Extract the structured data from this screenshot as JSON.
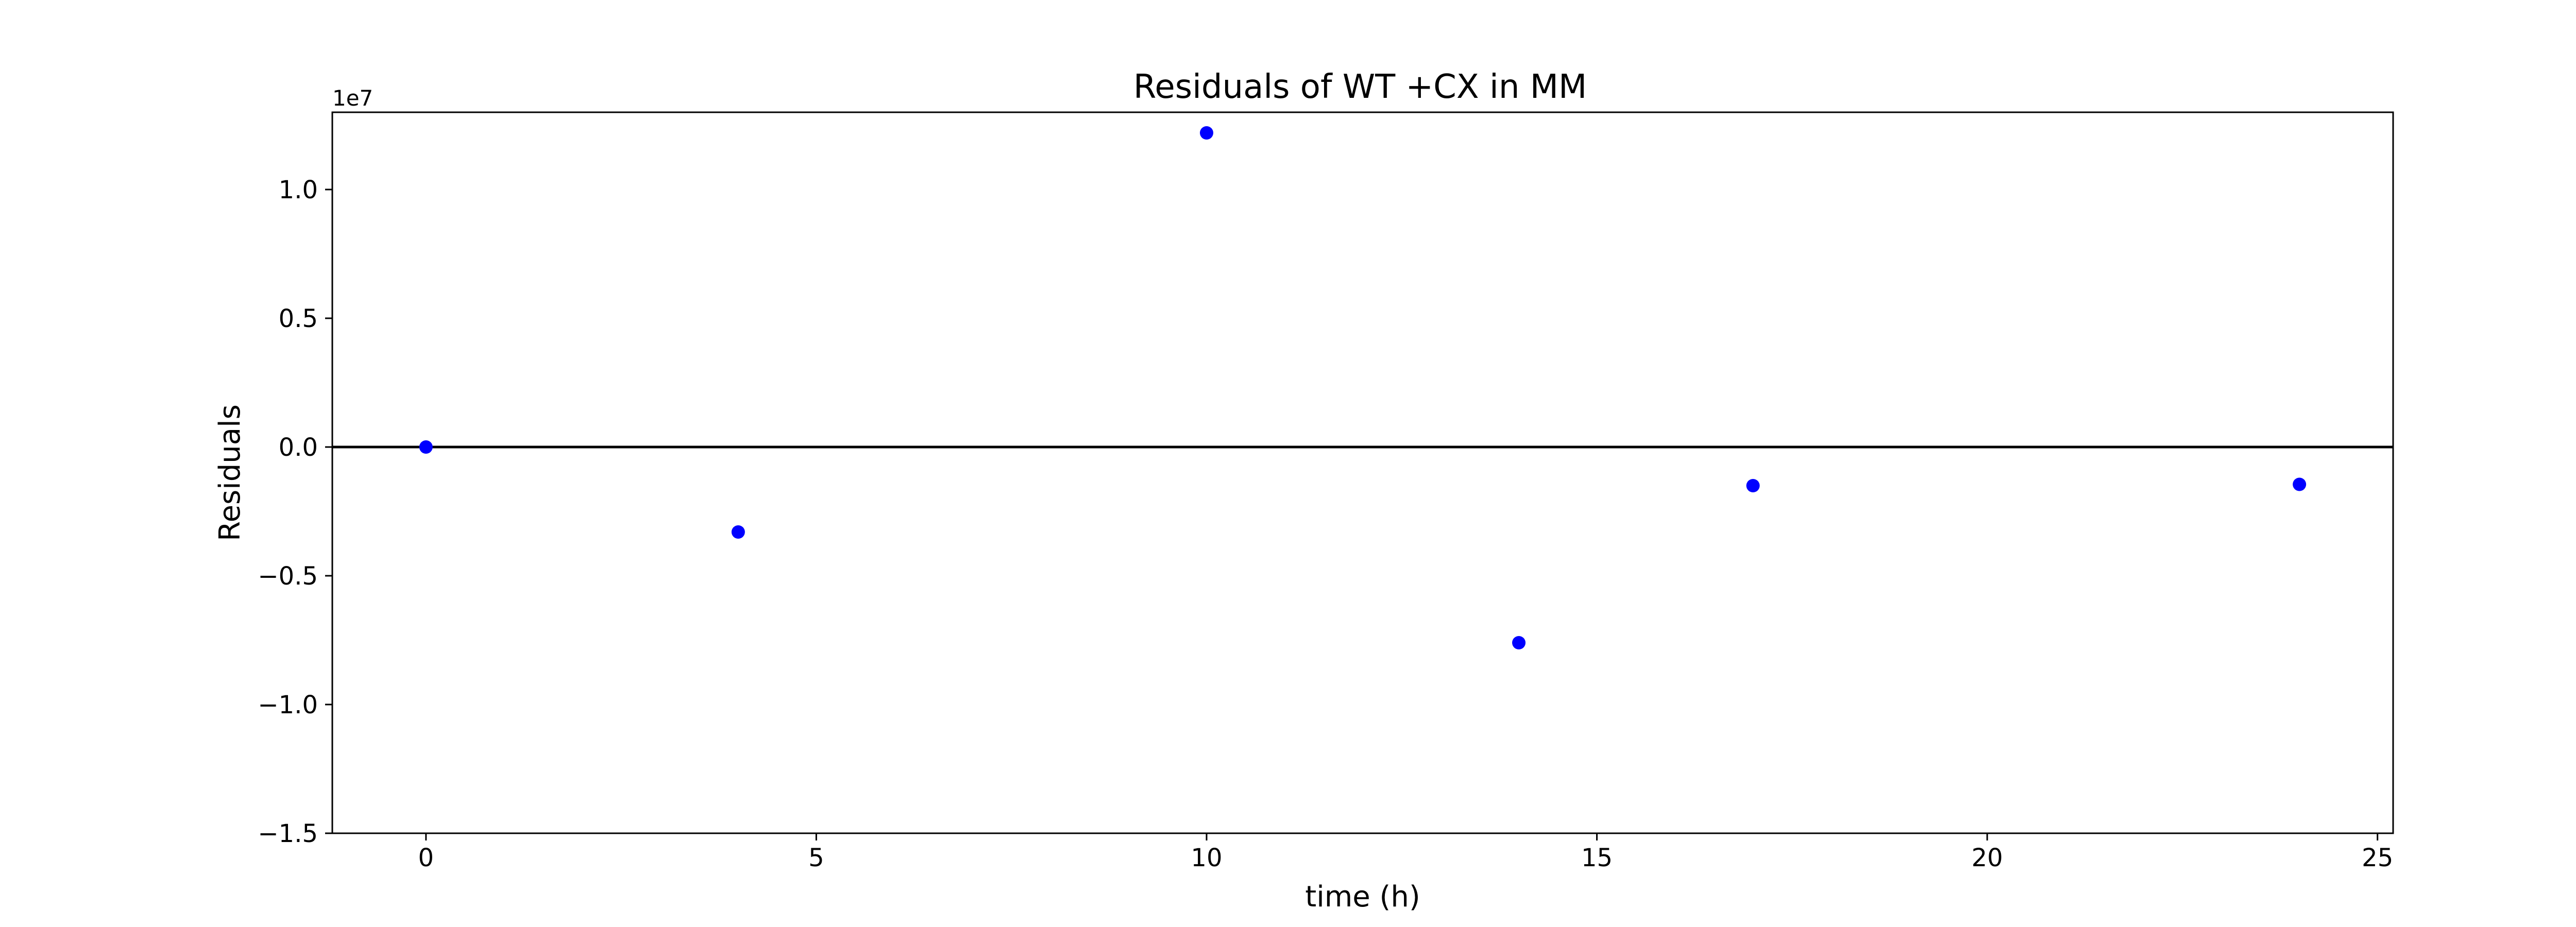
{
  "chart_data": {
    "type": "scatter",
    "title": "Residuals of WT +CX in MM",
    "xlabel": "time (h)",
    "ylabel": "Residuals",
    "y_offset_label": "1e7",
    "y_multiplier": 10000000,
    "xlim": [
      -1.2,
      25.2
    ],
    "ylim": [
      -1.5,
      1.3
    ],
    "x_ticks": [
      0,
      5,
      10,
      15,
      20,
      25
    ],
    "x_tick_labels": [
      "0",
      "5",
      "10",
      "15",
      "20",
      "25"
    ],
    "y_ticks": [
      -1.5,
      -1.0,
      -0.5,
      0.0,
      0.5,
      1.0
    ],
    "y_tick_labels": [
      "−1.5",
      "−1.0",
      "−0.5",
      "0.0",
      "0.5",
      "1.0"
    ],
    "reference_line_y": 0,
    "reference_line_color": "#000000",
    "grid": false,
    "series": [
      {
        "color": "#0000ff",
        "x": [
          0,
          4,
          10,
          14,
          17,
          24
        ],
        "y": [
          0.0,
          -0.33,
          1.22,
          -0.76,
          -0.15,
          -0.145
        ]
      }
    ]
  }
}
